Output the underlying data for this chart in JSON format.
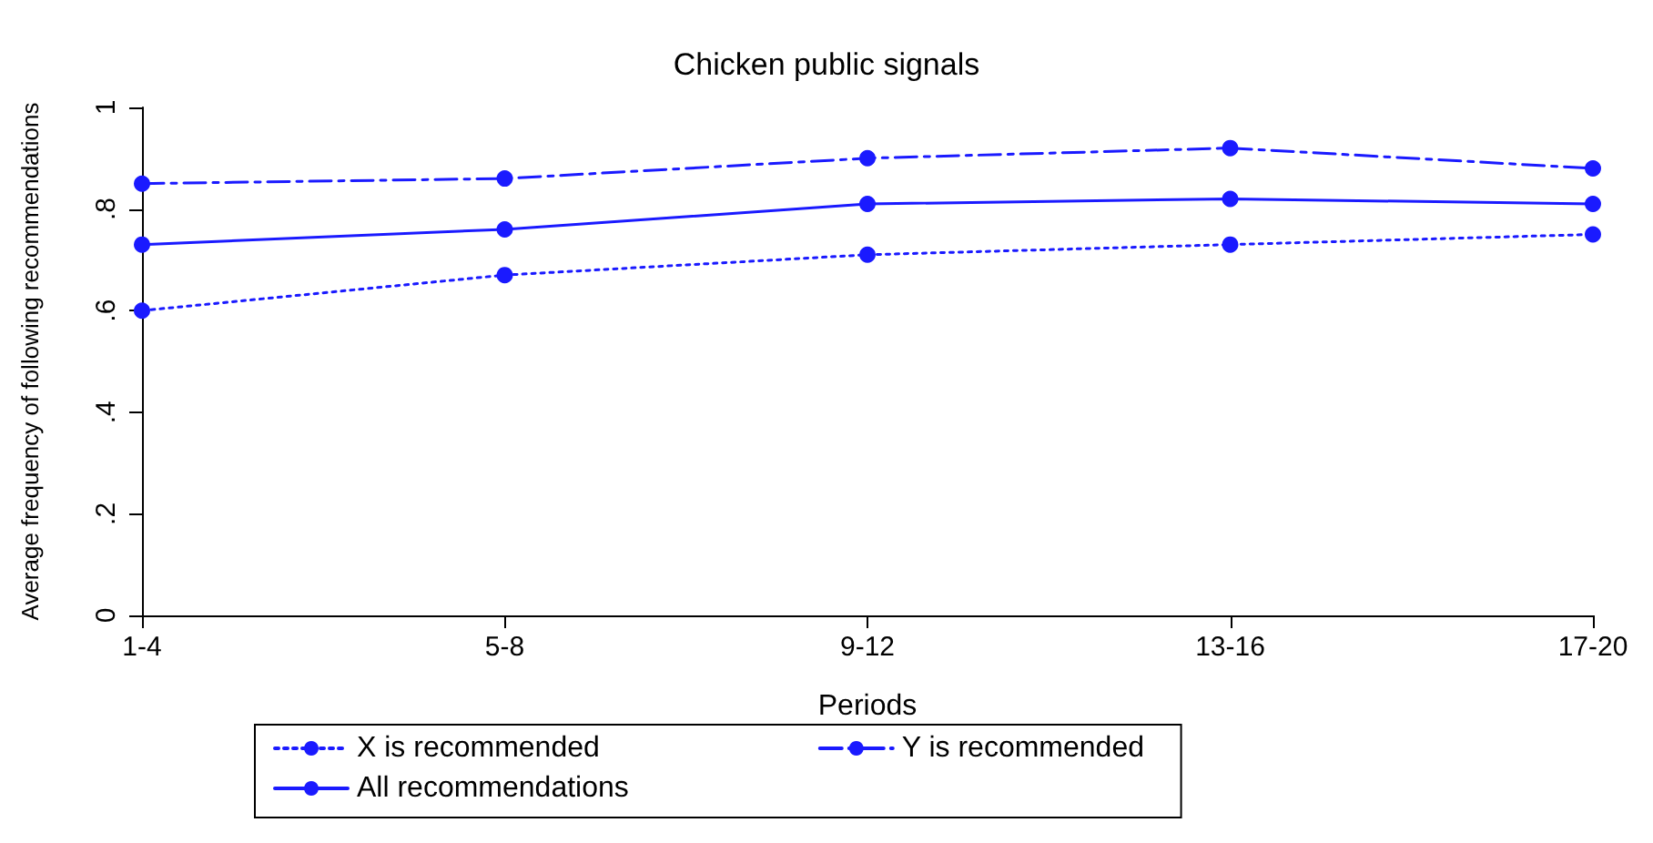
{
  "chart_data": {
    "type": "line",
    "title": "Chicken public signals",
    "xlabel": "Periods",
    "ylabel": "Average frequency of following recommendations",
    "categories": [
      "1-4",
      "5-8",
      "9-12",
      "13-16",
      "17-20"
    ],
    "series": [
      {
        "name": "X is recommended",
        "color": "#1a1aff",
        "line_style": "dotted",
        "values": [
          0.6,
          0.67,
          0.71,
          0.73,
          0.75
        ]
      },
      {
        "name": "Y is recommended",
        "color": "#1a1aff",
        "line_style": "dashed",
        "values": [
          0.85,
          0.86,
          0.9,
          0.92,
          0.88
        ]
      },
      {
        "name": "All recommendations",
        "color": "#1a1aff",
        "line_style": "solid",
        "values": [
          0.73,
          0.76,
          0.81,
          0.82,
          0.81
        ]
      }
    ],
    "ylim": [
      0,
      1
    ],
    "yticks": [
      {
        "value": 0,
        "label": "0"
      },
      {
        "value": 0.2,
        "label": ".2"
      },
      {
        "value": 0.4,
        "label": ".4"
      },
      {
        "value": 0.6,
        "label": ".6"
      },
      {
        "value": 0.8,
        "label": ".8"
      },
      {
        "value": 1,
        "label": "1"
      }
    ],
    "grid": false,
    "legend": "bottom",
    "marker": "circle"
  }
}
